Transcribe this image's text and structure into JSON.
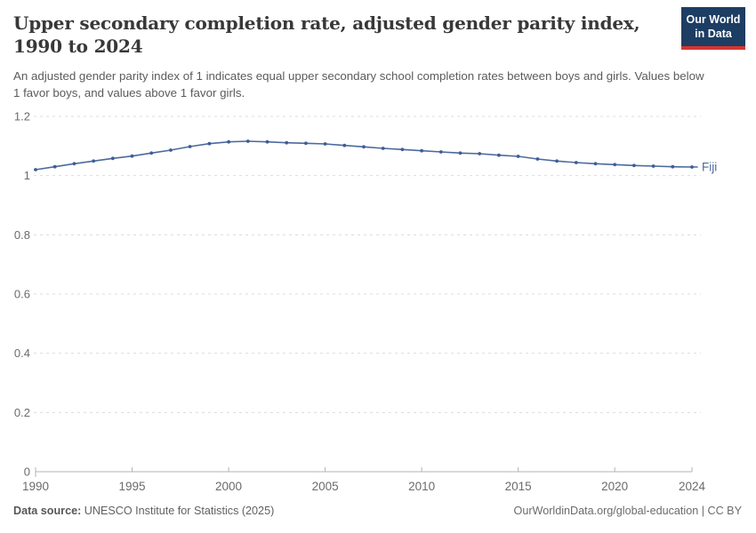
{
  "header": {
    "title": "Upper secondary completion rate, adjusted gender parity index, 1990 to 2024",
    "subtitle": "An adjusted gender parity index of 1 indicates equal upper secondary school completion rates between boys and girls. Values below 1 favor boys, and values above 1 favor girls.",
    "logo": {
      "line1": "Our World",
      "line2": "in Data",
      "bg_color": "#1d3d63",
      "accent_color": "#d8352f"
    }
  },
  "chart_data": {
    "type": "line",
    "title": "Upper secondary completion rate, adjusted gender parity index, 1990 to 2024",
    "xlabel": "",
    "ylabel": "",
    "xlim": [
      1990,
      2024
    ],
    "ylim": [
      0,
      1.2
    ],
    "grid": "horizontal-dashed",
    "legend_position": "end-of-line-label",
    "x_ticks": [
      1990,
      1995,
      2000,
      2005,
      2010,
      2015,
      2020,
      2024
    ],
    "y_ticks": [
      0,
      0.2,
      0.4,
      0.6,
      0.8,
      1,
      1.2
    ],
    "y_tick_labels": [
      "0",
      "0.2",
      "0.4",
      "0.6",
      "0.8",
      "1",
      "1.2"
    ],
    "series": [
      {
        "name": "Fiji",
        "color": "#4c6a9c",
        "marker_color": "#3e5d96",
        "x": [
          1990,
          1991,
          1992,
          1993,
          1994,
          1995,
          1996,
          1997,
          1998,
          1999,
          2000,
          2001,
          2002,
          2003,
          2004,
          2005,
          2006,
          2007,
          2008,
          2009,
          2010,
          2011,
          2012,
          2013,
          2014,
          2015,
          2016,
          2017,
          2018,
          2019,
          2020,
          2021,
          2022,
          2023,
          2024
        ],
        "values": [
          1.02,
          1.03,
          1.04,
          1.049,
          1.058,
          1.066,
          1.076,
          1.086,
          1.098,
          1.108,
          1.114,
          1.116,
          1.114,
          1.111,
          1.109,
          1.107,
          1.102,
          1.097,
          1.092,
          1.088,
          1.084,
          1.08,
          1.076,
          1.074,
          1.069,
          1.065,
          1.056,
          1.049,
          1.044,
          1.04,
          1.037,
          1.034,
          1.032,
          1.03,
          1.029
        ]
      }
    ]
  },
  "footer": {
    "data_source_label": "Data source:",
    "data_source_value": " UNESCO Institute for Statistics (2025)",
    "credit": "OurWorldinData.org/global-education | CC BY"
  }
}
